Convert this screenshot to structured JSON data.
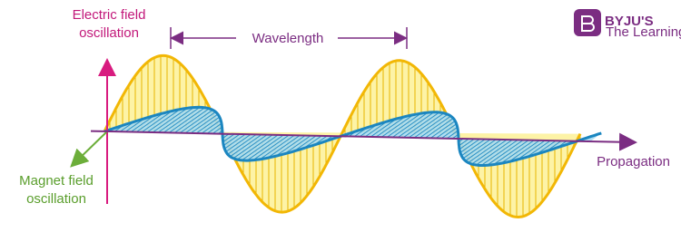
{
  "diagram": {
    "electric_label": [
      "Electric field",
      "oscillation"
    ],
    "wavelength_label": "Wavelength",
    "magnet_label": [
      "Magnet field",
      "oscillation"
    ],
    "propagation_label": "Propagation",
    "logo": {
      "name": "BYJU'S",
      "tagline": "The Learning App"
    }
  }
}
